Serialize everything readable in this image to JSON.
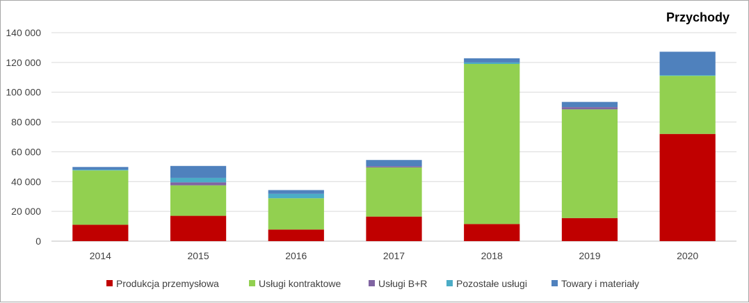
{
  "chart_data": {
    "type": "bar",
    "stacked": true,
    "title": "Przychody",
    "xlabel": "",
    "ylabel": "",
    "ylim": [
      0,
      140000
    ],
    "y_ticks": [
      "0",
      "20 000",
      "40 000",
      "60 000",
      "80 000",
      "100 000",
      "120 000",
      "140 000"
    ],
    "grid": true,
    "legend_position": "bottom",
    "categories": [
      "2014",
      "2015",
      "2016",
      "2017",
      "2018",
      "2019",
      "2020"
    ],
    "series": [
      {
        "name": "Produkcja przemysłowa",
        "color": "#c00000",
        "values": [
          11000,
          17000,
          7800,
          16500,
          11500,
          15500,
          72000
        ]
      },
      {
        "name": "Usługi kontraktowe",
        "color": "#92d050",
        "values": [
          36500,
          20500,
          21000,
          33000,
          107500,
          73000,
          39000
        ]
      },
      {
        "name": "Usługi B+R",
        "color": "#8064a2",
        "values": [
          0,
          2000,
          0,
          800,
          0,
          1500,
          0
        ]
      },
      {
        "name": "Pozostałe usługi",
        "color": "#4bacc6",
        "values": [
          500,
          3000,
          3000,
          0,
          1000,
          0,
          500
        ]
      },
      {
        "name": "Towary i materiały",
        "color": "#4f81bd",
        "values": [
          1800,
          8000,
          2500,
          4200,
          2800,
          3500,
          15700
        ]
      }
    ]
  }
}
